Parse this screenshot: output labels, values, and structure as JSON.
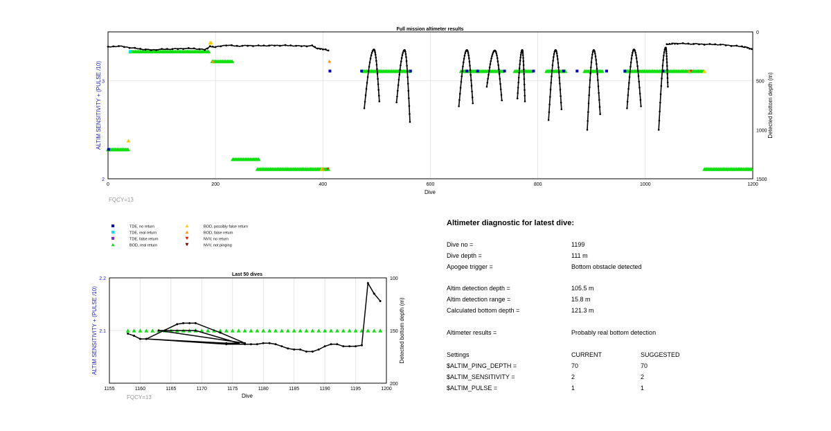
{
  "colors": {
    "tde_no_return": "#0000c8",
    "tde_real_return": "#00e5ff",
    "tde_false_return": "#7a2fd0",
    "bod_real_return": "#11e011",
    "bod_possibly_false": "#f5d000",
    "bod_false_return": "#ff9900",
    "nvv_no_return": "#e82000",
    "nvv_not_pinging": "#7a0000",
    "left_axis_label": "#2020c0",
    "depth_line": "#000000",
    "fqcy": "#999999"
  },
  "chart_data": [
    {
      "type": "scatter",
      "title": "Full mission altimeter results",
      "xlabel": "Dive",
      "ylabel_left": "ALTIM SENSITIVITY + (PULSE /10)",
      "ylabel_right": "Detected bottom depth (m)",
      "xlim": [
        0,
        1200
      ],
      "ylim_left": [
        2,
        3.5
      ],
      "ylim_right": [
        1500,
        0
      ],
      "x_ticks": [
        "0",
        "200",
        "400",
        "600",
        "800",
        "1000",
        "1200"
      ],
      "y_left_ticks": [
        "2",
        "3"
      ],
      "y_right_ticks": [
        "0",
        "500",
        "1000",
        "1500"
      ],
      "grid": true,
      "footer": "FQCY=13",
      "bod_real_segments": [
        {
          "x0": 0,
          "x1": 38,
          "y": 2.3
        },
        {
          "x0": 42,
          "x1": 188,
          "y": 3.3
        },
        {
          "x0": 194,
          "x1": 232,
          "y": 3.2
        },
        {
          "x0": 232,
          "x1": 282,
          "y": 2.2
        },
        {
          "x0": 278,
          "x1": 412,
          "y": 2.1
        },
        {
          "x0": 475,
          "x1": 563,
          "y": 3.1
        },
        {
          "x0": 657,
          "x1": 735,
          "y": 3.1
        },
        {
          "x0": 757,
          "x1": 790,
          "y": 3.1
        },
        {
          "x0": 816,
          "x1": 853,
          "y": 3.1
        },
        {
          "x0": 887,
          "x1": 922,
          "y": 3.1
        },
        {
          "x0": 963,
          "x1": 1035,
          "y": 3.1
        },
        {
          "x0": 1035,
          "x1": 1110,
          "y": 3.1
        },
        {
          "x0": 1110,
          "x1": 1200,
          "y": 2.1
        }
      ],
      "tde_no_return_points": [
        [
          1,
          2.3
        ],
        [
          413,
          3.1
        ],
        [
          472,
          3.1
        ],
        [
          563,
          3.1
        ],
        [
          668,
          3.1
        ],
        [
          688,
          3.1
        ],
        [
          738,
          3.1
        ],
        [
          792,
          3.1
        ],
        [
          848,
          3.1
        ],
        [
          873,
          3.1
        ],
        [
          928,
          3.1
        ],
        [
          962,
          3.1
        ],
        [
          1033,
          3.1
        ]
      ],
      "tde_real_return_points": [
        [
          41,
          3.3
        ]
      ],
      "bod_possibly_false_points": [
        [
          38,
          2.39
        ],
        [
          190,
          3.39
        ],
        [
          192,
          3.39
        ],
        [
          398,
          2.1
        ],
        [
          1110,
          3.1
        ]
      ],
      "bod_false_return_points": [
        [
          412,
          3.2
        ],
        [
          400,
          2.1
        ],
        [
          195,
          3.2
        ],
        [
          1082,
          3.1
        ]
      ],
      "nvv_no_return_points": [
        [
          409,
          2.1
        ],
        [
          1085,
          3.1
        ]
      ],
      "surface_track_depths": [
        {
          "x": [
            0,
            20,
            40,
            60,
            80,
            100,
            120,
            140,
            160,
            180,
            190,
            200,
            220,
            240,
            260,
            280,
            300,
            320,
            340,
            360,
            380,
            390,
            400,
            410
          ],
          "depth": [
            155,
            145,
            160,
            175,
            185,
            178,
            175,
            170,
            170,
            182,
            150,
            155,
            135,
            145,
            140,
            142,
            140,
            138,
            140,
            145,
            142,
            170,
            175,
            190
          ]
        },
        {
          "x": [
            1040,
            1050,
            1060,
            1080,
            1100,
            1120,
            1140,
            1160,
            1180,
            1190,
            1198
          ],
          "depth": [
            130,
            120,
            118,
            122,
            125,
            128,
            130,
            140,
            150,
            160,
            175
          ]
        }
      ],
      "dive_profiles": [
        {
          "x0": 477,
          "x1": 505,
          "peak_x": 495,
          "peak": 180,
          "end1": 780,
          "end2": 710
        },
        {
          "x0": 537,
          "x1": 562,
          "peak_x": 552,
          "peak": 185,
          "end1": 720,
          "end2": 920
        },
        {
          "x0": 653,
          "x1": 679,
          "peak_x": 668,
          "peak": 185,
          "end1": 760,
          "end2": 730
        },
        {
          "x0": 705,
          "x1": 733,
          "peak_x": 720,
          "peak": 190,
          "end1": 560,
          "end2": 700
        },
        {
          "x0": 762,
          "x1": 776,
          "peak_x": 771,
          "peak": 185,
          "end1": 680,
          "end2": 710
        },
        {
          "x0": 820,
          "x1": 844,
          "peak_x": 833,
          "peak": 185,
          "end1": 900,
          "end2": 790
        },
        {
          "x0": 892,
          "x1": 916,
          "peak_x": 904,
          "peak": 185,
          "end1": 1000,
          "end2": 840
        },
        {
          "x0": 966,
          "x1": 992,
          "peak_x": 979,
          "peak": 180,
          "end1": 780,
          "end2": 760
        },
        {
          "x0": 1025,
          "x1": 1042,
          "peak_x": 1038,
          "peak": 160,
          "end1": 1000,
          "end2": 560
        }
      ]
    },
    {
      "type": "line",
      "title": "Last 50 dives",
      "xlabel": "Dive",
      "ylabel_left": "ALTIM SENSITIVITY + (PULSE /10)",
      "ylabel_right": "Detected bottom depth (m)",
      "xlim": [
        1155,
        1200
      ],
      "ylim_left": [
        2,
        2.2
      ],
      "ylim_right": [
        200,
        100
      ],
      "x_ticks": [
        "1155",
        "1160",
        "1165",
        "1170",
        "1175",
        "1180",
        "1185",
        "1190",
        "1195",
        "1200"
      ],
      "y_left_ticks": [
        "2.1",
        "2.2"
      ],
      "y_right_ticks": [
        "100",
        "150",
        "200"
      ],
      "grid": true,
      "footer": "FQCY=13",
      "bod_real_x": [
        1158,
        1159,
        1160,
        1161,
        1162,
        1163,
        1164,
        1165,
        1166,
        1167,
        1168,
        1169,
        1170,
        1171,
        1172,
        1173,
        1174,
        1175,
        1176,
        1177,
        1178,
        1179,
        1180,
        1181,
        1182,
        1183,
        1184,
        1185,
        1186,
        1187,
        1188,
        1189,
        1190,
        1191,
        1192,
        1193,
        1194,
        1195,
        1196,
        1197,
        1198,
        1199
      ],
      "bod_real_y": 2.1,
      "depth_line": {
        "x": [
          1158,
          1159,
          1160,
          1161,
          1166,
          1167,
          1168,
          1169,
          1173,
          1177,
          1163,
          1169,
          1176,
          1174,
          1161,
          1174,
          1177,
          1178,
          1179,
          1180,
          1181,
          1182,
          1183,
          1184,
          1185,
          1186,
          1187,
          1188,
          1189,
          1190,
          1191,
          1192,
          1193,
          1194,
          1195,
          1196,
          1197,
          1198,
          1199
        ],
        "y": [
          153,
          155,
          158,
          158,
          144,
          143,
          143,
          143,
          152,
          162,
          150,
          150,
          162,
          162,
          158,
          163,
          163,
          163,
          163,
          162,
          162,
          163,
          165,
          167,
          168,
          168,
          170,
          170,
          168,
          165,
          163,
          163,
          165,
          165,
          165,
          164,
          105,
          115,
          122
        ]
      }
    }
  ],
  "legend": {
    "items": [
      {
        "label": "TDE, no return",
        "marker": "square",
        "color": "#0000c8"
      },
      {
        "label": "TDE, real return",
        "marker": "square",
        "color": "#00e5ff"
      },
      {
        "label": "TDE, false return",
        "marker": "square",
        "color": "#7a2fd0"
      },
      {
        "label": "BOD, real return",
        "marker": "triangle-up",
        "color": "#11e011"
      },
      {
        "label": "BOD, possibly false return",
        "marker": "triangle-up",
        "color": "#f5d000"
      },
      {
        "label": "BOD, false return",
        "marker": "triangle-up",
        "color": "#ff9900"
      },
      {
        "label": "NVV, no return",
        "marker": "triangle-down",
        "color": "#e82000"
      },
      {
        "label": "NVV, not pinging",
        "marker": "triangle-down",
        "color": "#7a0000"
      }
    ]
  },
  "diagnostic": {
    "title": "Altimeter diagnostic for latest dive:",
    "dive_no_label": "Dive no =",
    "dive_no_value": "1199",
    "dive_depth_label": "Dive depth =",
    "dive_depth_value": "111 m",
    "apogee_label": "Apogee trigger =",
    "apogee_value": "Bottom obstacle detected",
    "det_depth_label": "Altim detection depth =",
    "det_depth_value": "105.5 m",
    "det_range_label": "Altim detection range =",
    "det_range_value": "15.8 m",
    "calc_depth_label": "Calculated bottom depth =",
    "calc_depth_value": "121.3 m",
    "results_label": "Altimeter results =",
    "results_value": "Probably real bottom detection",
    "settings_label": "Settings",
    "current_header": "CURRENT",
    "suggested_header": "SUGGESTED",
    "ping_depth_label": "$ALTIM_PING_DEPTH =",
    "ping_depth_current": "70",
    "ping_depth_suggested": "70",
    "sensitivity_label": "$ALTIM_SENSITIVITY =",
    "sensitivity_current": "2",
    "sensitivity_suggested": "2",
    "pulse_label": "$ALTIM_PULSE =",
    "pulse_current": "1",
    "pulse_suggested": "1"
  }
}
